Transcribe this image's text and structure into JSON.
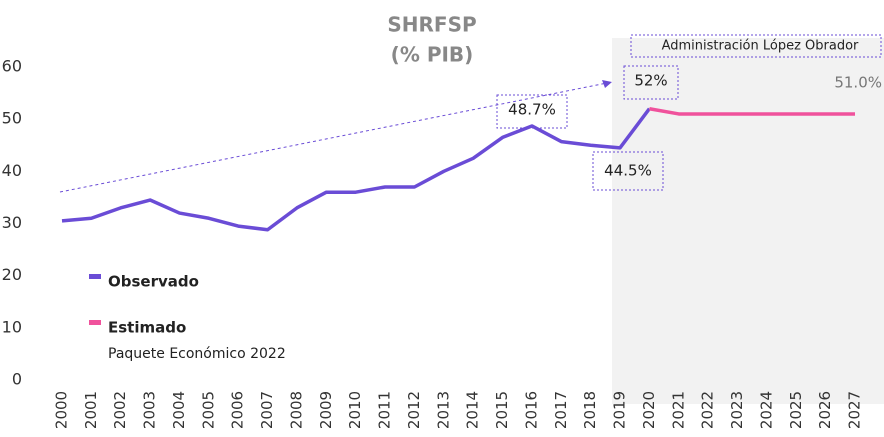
{
  "chart_data": {
    "type": "line",
    "title": "SHRFSP",
    "subtitle": "(% PIB)",
    "categories": [
      "2000",
      "2001",
      "2002",
      "2003",
      "2004",
      "2005",
      "2006",
      "2007",
      "2008",
      "2009",
      "2010",
      "2011",
      "2012",
      "2013",
      "2014",
      "2015",
      "2016",
      "2017",
      "2018",
      "2019",
      "2020",
      "2021",
      "2022",
      "2023",
      "2024",
      "2025",
      "2026",
      "2027"
    ],
    "series": [
      {
        "name": "Observado",
        "color": "#6a4cd6",
        "values": [
          30.5,
          31,
          33,
          34.5,
          32,
          31,
          29.5,
          28.8,
          33,
          36,
          36,
          37,
          37,
          40,
          42.5,
          46.5,
          48.7,
          45.7,
          45,
          44.5,
          52,
          null,
          null,
          null,
          null,
          null,
          null,
          null
        ]
      },
      {
        "name": "Estimado",
        "color": "#f0529c",
        "values": [
          null,
          null,
          null,
          null,
          null,
          null,
          null,
          null,
          null,
          null,
          null,
          null,
          null,
          null,
          null,
          null,
          null,
          null,
          null,
          null,
          52,
          51,
          51,
          51,
          51,
          51,
          51,
          51.0
        ]
      }
    ],
    "annotations": [
      "48.7%",
      "52%",
      "44.5%",
      "51.0%",
      "Administración López Obrador",
      "Paquete Económico 2022"
    ],
    "ylim": [
      0,
      60
    ],
    "yticks": [
      0,
      10,
      20,
      30,
      40,
      50,
      60
    ],
    "grid": false
  }
}
